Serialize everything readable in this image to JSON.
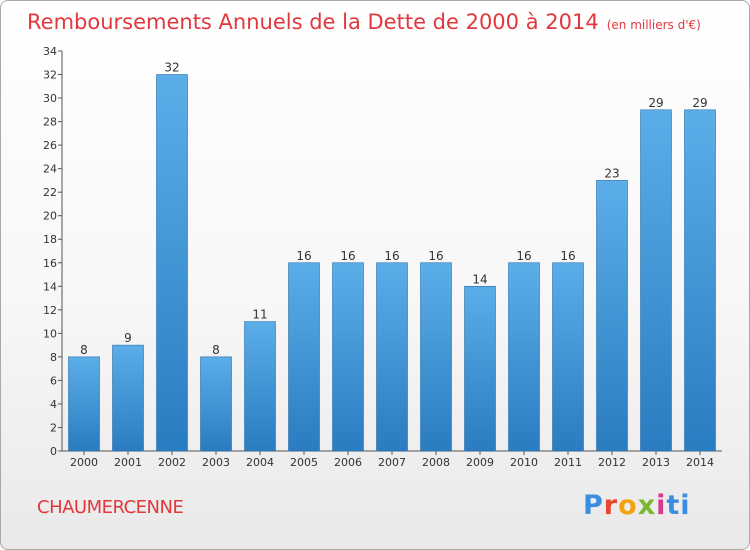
{
  "chart_data": {
    "type": "bar",
    "title": "Remboursements Annuels de la Dette de 2000 à 2014",
    "unit": "(en milliers d'€)",
    "categories": [
      "2000",
      "2001",
      "2002",
      "2003",
      "2004",
      "2005",
      "2006",
      "2007",
      "2008",
      "2009",
      "2010",
      "2011",
      "2012",
      "2013",
      "2014"
    ],
    "values": [
      8,
      9,
      32,
      8,
      11,
      16,
      16,
      16,
      16,
      14,
      16,
      16,
      23,
      29,
      29
    ],
    "ylim": [
      0,
      34
    ],
    "yticks": [
      0,
      2,
      4,
      6,
      8,
      10,
      12,
      14,
      16,
      18,
      20,
      22,
      24,
      26,
      28,
      30,
      32,
      34
    ],
    "grid": false,
    "colors": {
      "bar_top": "#5baee8",
      "bar_bottom": "#2a7cc0",
      "title": "#e2373d"
    }
  },
  "commune": "CHAUMERCENNE",
  "logo": {
    "text": "Proxiti"
  }
}
